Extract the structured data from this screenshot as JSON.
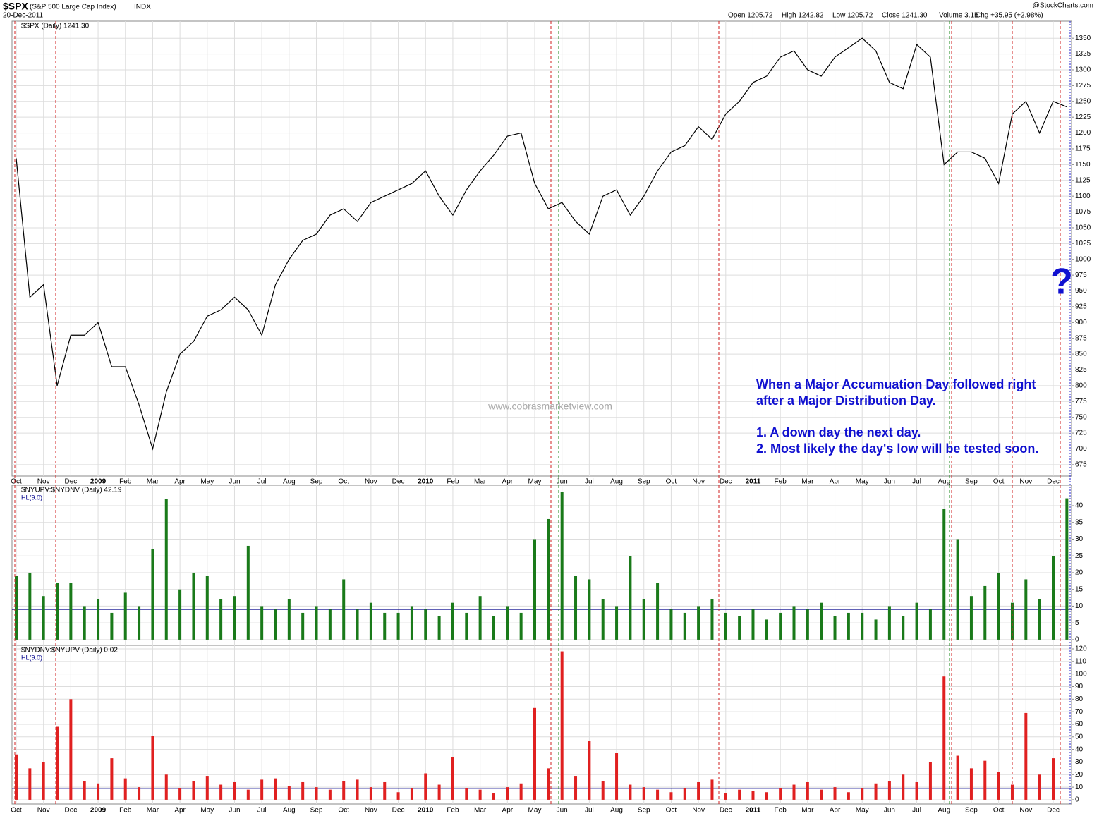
{
  "header": {
    "symbol": "$SPX",
    "name": "(S&P 500 Large Cap Index)",
    "exchange": "INDX",
    "date": "20-Dec-2011",
    "source": "@StockCharts.com",
    "quote": [
      "Open 1205.72",
      "High 1242.82",
      "Low 1205.72",
      "Close 1241.30",
      "Volume 3.1B",
      "Chg +35.95 (+2.98%)"
    ]
  },
  "watermark": "www.cobrasmarketview.com",
  "annotations": [
    "When a Major Accumuation Day followed right",
    "after a Major Distribution Day.",
    "1. A down day the next day.",
    "2. Most likely the day's low will be tested soon."
  ],
  "question_mark": "?",
  "chart_data": [
    {
      "type": "line",
      "title": "$SPX (Daily) 1241.30",
      "color": "#000000",
      "categories": [
        "Oct",
        null,
        "Nov",
        null,
        "Dec",
        null,
        "2009",
        null,
        "Feb",
        null,
        "Mar",
        null,
        "Apr",
        null,
        "May",
        null,
        "Jun",
        null,
        "Jul",
        null,
        "Aug",
        null,
        "Sep",
        null,
        "Oct",
        null,
        "Nov",
        null,
        "Dec",
        null,
        "2010",
        null,
        "Feb",
        null,
        "Mar",
        null,
        "Apr",
        null,
        "May",
        null,
        "Jun",
        null,
        "Jul",
        null,
        "Aug",
        null,
        "Sep",
        null,
        "Oct",
        null,
        "Nov",
        null,
        "Dec",
        null,
        "2011",
        null,
        "Feb",
        null,
        "Mar",
        null,
        "Apr",
        null,
        "May",
        null,
        "Jun",
        null,
        "Jul",
        null,
        "Aug",
        null,
        "Sep",
        null,
        "Oct",
        null,
        "Nov",
        null,
        "Dec",
        null
      ],
      "values": [
        1160,
        940,
        960,
        800,
        880,
        880,
        900,
        830,
        830,
        770,
        700,
        790,
        850,
        870,
        910,
        920,
        940,
        920,
        880,
        960,
        1000,
        1030,
        1040,
        1070,
        1080,
        1060,
        1090,
        1100,
        1110,
        1120,
        1140,
        1100,
        1070,
        1110,
        1140,
        1165,
        1195,
        1200,
        1120,
        1080,
        1090,
        1060,
        1040,
        1100,
        1110,
        1070,
        1100,
        1140,
        1170,
        1180,
        1210,
        1190,
        1230,
        1250,
        1280,
        1290,
        1320,
        1330,
        1300,
        1290,
        1320,
        1335,
        1350,
        1330,
        1280,
        1270,
        1340,
        1320,
        1150,
        1170,
        1170,
        1160,
        1120,
        1230,
        1250,
        1200,
        1250,
        1241.3
      ],
      "ylim": [
        657,
        1377
      ],
      "yticks": [
        675,
        700,
        725,
        750,
        775,
        800,
        825,
        850,
        875,
        900,
        925,
        950,
        975,
        1000,
        1025,
        1050,
        1075,
        1100,
        1125,
        1150,
        1175,
        1200,
        1225,
        1250,
        1275,
        1300,
        1325,
        1350
      ],
      "grid": true
    },
    {
      "type": "bar",
      "title": "$NYUPV:$NYDNV (Daily) 42.19",
      "color": "#1a7a1a",
      "hline": {
        "value": 9,
        "label": "HL(9.0)",
        "color": "#00008b"
      },
      "values": [
        19,
        20,
        13,
        17,
        17,
        10,
        12,
        8,
        14,
        10,
        27,
        42,
        15,
        20,
        19,
        12,
        13,
        28,
        10,
        9,
        12,
        8,
        10,
        9,
        18,
        9,
        11,
        8,
        8,
        10,
        9,
        7,
        11,
        8,
        13,
        7,
        10,
        8,
        30,
        36,
        44,
        19,
        18,
        12,
        10,
        25,
        12,
        17,
        9,
        8,
        10,
        12,
        8,
        7,
        9,
        6,
        8,
        10,
        9,
        11,
        7,
        8,
        8,
        6,
        10,
        7,
        11,
        9,
        39,
        30,
        13,
        16,
        20,
        11,
        18,
        12,
        25,
        42.19
      ],
      "ylim": [
        -1.7,
        46.1
      ],
      "yticks": [
        0,
        5,
        10,
        15,
        20,
        25,
        30,
        35,
        40
      ],
      "grid": true
    },
    {
      "type": "bar",
      "title": "$NYDNV:$NYUPV (Daily) 0.02",
      "color": "#e02020",
      "hline": {
        "value": 9,
        "label": "HL(9.0)",
        "color": "#00008b"
      },
      "values": [
        36,
        25,
        30,
        58,
        80,
        15,
        13,
        33,
        17,
        10,
        51,
        20,
        9,
        15,
        19,
        12,
        14,
        8,
        16,
        17,
        11,
        14,
        10,
        8,
        15,
        16,
        10,
        14,
        6,
        9,
        21,
        12,
        34,
        9,
        8,
        5,
        10,
        13,
        73,
        25,
        118,
        19,
        47,
        15,
        37,
        12,
        10,
        8,
        6,
        9,
        14,
        16,
        5,
        8,
        7,
        6,
        9,
        12,
        14,
        8,
        10,
        6,
        9,
        13,
        15,
        20,
        14,
        30,
        98,
        35,
        25,
        31,
        22,
        12,
        69,
        20,
        33,
        0.02
      ],
      "ylim": [
        -3.4,
        122.8
      ],
      "yticks": [
        0,
        10,
        20,
        30,
        40,
        50,
        60,
        70,
        80,
        90,
        100,
        110,
        120
      ],
      "grid": true
    }
  ]
}
